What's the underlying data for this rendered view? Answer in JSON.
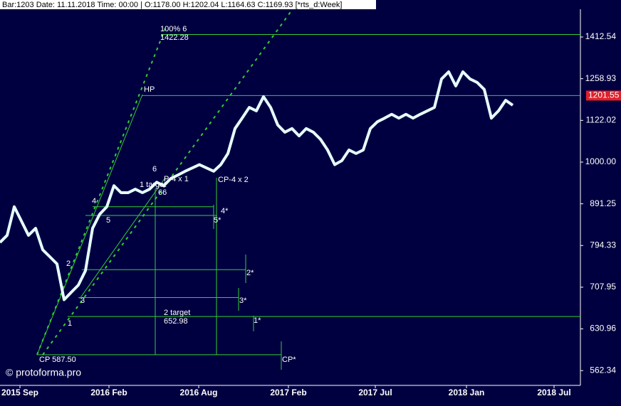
{
  "chart_data": {
    "type": "line",
    "title": "Bar:1203 Date: 11.11.2018 Time: 00:00 | O:1178.00 H:1202.04 L:1164.63 C:1169.93 [*rts_d:Week]",
    "watermark": "© protoforma.pro",
    "log_scale": true,
    "color": "#e6ffff",
    "values": [
      801,
      817,
      884,
      850,
      817,
      833,
      785,
      770,
      755,
      684,
      698,
      712,
      741,
      833,
      866,
      884,
      937,
      919,
      919,
      928,
      919,
      928,
      946,
      937,
      956,
      965,
      975,
      984,
      993,
      984,
      975,
      993,
      1024,
      1097,
      1129,
      1163,
      1152,
      1198,
      1163,
      1108,
      1086,
      1097,
      1075,
      1097,
      1086,
      1065,
      1034,
      993,
      1004,
      1034,
      1024,
      1034,
      1097,
      1118,
      1129,
      1141,
      1129,
      1141,
      1129,
      1141,
      1152,
      1163,
      1258,
      1283,
      1234,
      1283,
      1258,
      1246,
      1222,
      1129,
      1152,
      1186,
      1170
    ],
    "xlim": [
      0,
      81.5
    ],
    "xticks": [
      {
        "value": 2.8,
        "label": "2015 Sep"
      },
      {
        "value": 15.3,
        "label": "2016 Feb"
      },
      {
        "value": 27.9,
        "label": "2016 Aug"
      },
      {
        "value": 40.5,
        "label": "2017 Feb"
      },
      {
        "value": 52.7,
        "label": "2017 Jul"
      },
      {
        "value": 65.5,
        "label": "2018 Jan"
      },
      {
        "value": 77.8,
        "label": "2018 Jul"
      }
    ],
    "ylim": [
      542,
      1522
    ],
    "yticks": [
      562.34,
      630.96,
      707.95,
      794.33,
      891.25,
      {
        "value": 1000,
        "label": "1000.00"
      },
      1122.02,
      1258.93,
      1412.54
    ],
    "levels": [
      1422.28,
      1201.55,
      884,
      863,
      743,
      688,
      652.98,
      587.5
    ],
    "marker_label": "1201.55",
    "level_color": "#33cc33",
    "annotations": [
      "100% 6",
      "1422.28",
      "HP",
      "CP-4 x 2",
      "4*",
      "5*",
      "2*",
      "3*",
      "1*",
      "CP*",
      "2 target",
      "652.98",
      "CP 587.50",
      "1",
      "2",
      "3",
      "4",
      "5",
      "6",
      "1 target",
      "P-4 x 1",
      "66"
    ]
  }
}
